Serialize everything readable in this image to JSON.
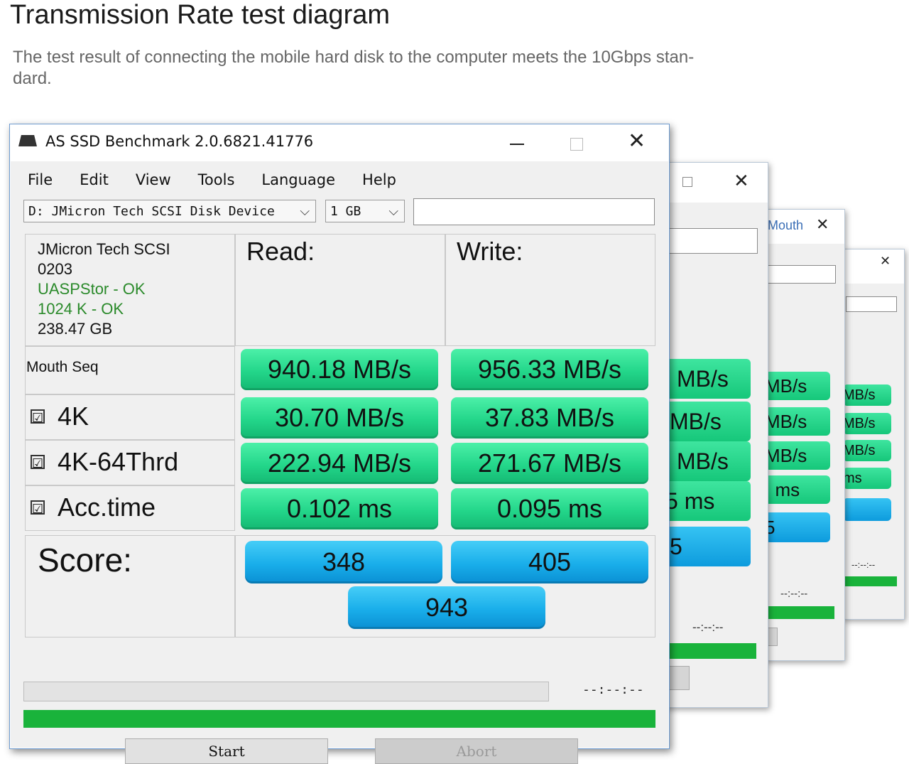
{
  "page": {
    "title": "Transmission Rate test diagram",
    "subtitle": "The test result of connecting the mobile hard disk to the computer meets the 10Gbps stan-dard."
  },
  "window": {
    "title": "AS SSD Benchmark 2.0.6821.41776",
    "menu": [
      "File",
      "Edit",
      "View",
      "Tools",
      "Language",
      "Help"
    ],
    "drive_select": "D: JMicron Tech SCSI Disk Device",
    "size_select": "1 GB",
    "drive_info": {
      "name": "JMicron Tech SCSI",
      "firmware": "0203",
      "driver_status": "UASPStor - OK",
      "alignment_status": "1024 K - OK",
      "capacity": "238.47 GB"
    },
    "headers": {
      "read": "Read:",
      "write": "Write:"
    },
    "rows": [
      {
        "label": "Mouth Seq",
        "read": "940.18 MB/s",
        "write": "956.33 MB/s",
        "checkbox": false
      },
      {
        "label": "4K",
        "read": "30.70 MB/s",
        "write": "37.83 MB/s",
        "checkbox": true
      },
      {
        "label": "4K-64Thrd",
        "read": "222.94 MB/s",
        "write": "271.67 MB/s",
        "checkbox": true
      },
      {
        "label": "Acc.time",
        "read": "0.102 ms",
        "write": "0.095 ms",
        "checkbox": true
      }
    ],
    "score": {
      "label": "Score:",
      "read": "348",
      "write": "405",
      "total": "943"
    },
    "time_display": "--:--:--",
    "progress": 1.0,
    "buttons": {
      "start": "Start",
      "abort": "Abort"
    },
    "checkbox_mark": "☑"
  },
  "background_windows": {
    "w1": {
      "units": [
        "MB/s",
        "MB/s",
        "MB/s",
        "5 ms"
      ],
      "score": "5",
      "time": "--:--:--"
    },
    "w2": {
      "tab_label": "Mouth",
      "units": [
        "MB/s",
        "MB/s",
        "MB/s",
        "ms"
      ],
      "score": "5",
      "time": "--:--:--"
    },
    "w3": {
      "units": [
        "MB/s",
        "MB/s",
        "MB/s",
        "ms"
      ],
      "time": "--:--:--"
    }
  },
  "colors": {
    "result_green": "#23d68a",
    "score_blue": "#19aeea",
    "progress_green": "#19b33b",
    "ok_text": "#2b8a2b"
  }
}
